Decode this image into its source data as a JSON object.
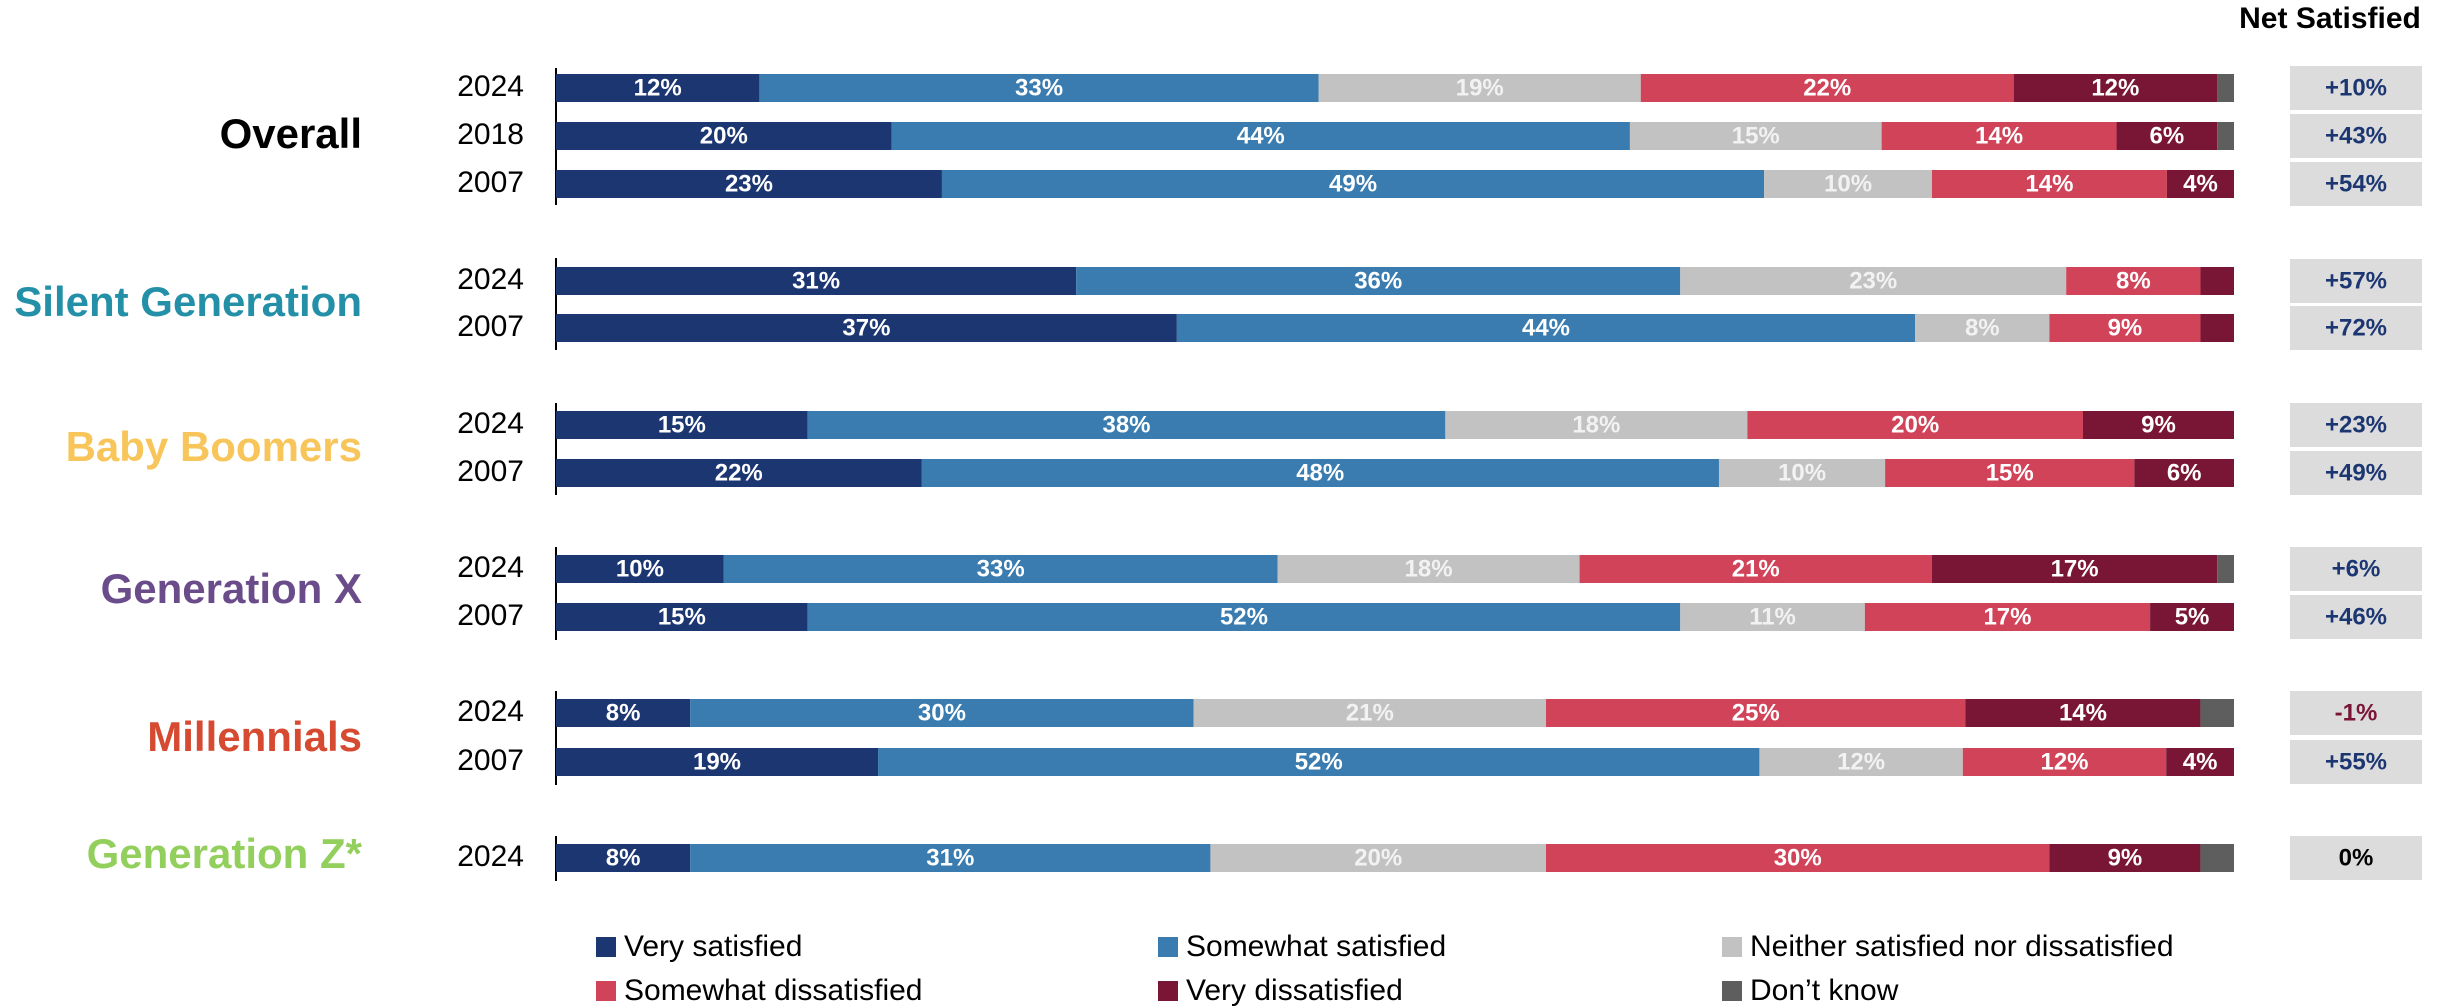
{
  "net_header": "Net Satisfied",
  "colors": {
    "very_satisfied": "#1c3672",
    "somewhat_satisfied": "#3a7caf",
    "neither": "#c2c2c2",
    "somewhat_dissatisfied": "#d14359",
    "very_dissatisfied": "#7a1635",
    "dont_know": "#5e5e5e",
    "net_box": "#dcdcdc",
    "net_positive_text": "#1c3672",
    "net_negative_text": "#7a1635",
    "net_zero_text": "#000000"
  },
  "chart_data": {
    "type": "bar",
    "orientation": "horizontal-stacked-100",
    "legend_position": "bottom",
    "categories_series": [
      "Very satisfied",
      "Somewhat satisfied",
      "Neither satisfied nor dissatisfied",
      "Somewhat dissatisfied",
      "Very dissatisfied",
      "Don’t know"
    ],
    "groups": [
      {
        "name": "Overall",
        "color": "#000000",
        "rows": [
          {
            "year": "2024",
            "values": [
              12,
              33,
              19,
              22,
              12,
              1
            ],
            "labels": [
              "12%",
              "33%",
              "19%",
              "22%",
              "12%",
              ""
            ],
            "net": "+10%"
          },
          {
            "year": "2018",
            "values": [
              20,
              44,
              15,
              14,
              6,
              1
            ],
            "labels": [
              "20%",
              "44%",
              "15%",
              "14%",
              "6%",
              ""
            ],
            "net": "+43%"
          },
          {
            "year": "2007",
            "values": [
              23,
              49,
              10,
              14,
              4,
              0
            ],
            "labels": [
              "23%",
              "49%",
              "10%",
              "14%",
              "4%",
              ""
            ],
            "net": "+54%"
          }
        ]
      },
      {
        "name": "Silent Generation",
        "color": "#2490a8",
        "rows": [
          {
            "year": "2024",
            "values": [
              31,
              36,
              23,
              8,
              2,
              0
            ],
            "labels": [
              "31%",
              "36%",
              "23%",
              "8%",
              "",
              ""
            ],
            "net": "+57%"
          },
          {
            "year": "2007",
            "values": [
              37,
              44,
              8,
              9,
              2,
              0
            ],
            "labels": [
              "37%",
              "44%",
              "8%",
              "9%",
              "",
              ""
            ],
            "net": "+72%"
          }
        ]
      },
      {
        "name": "Baby Boomers",
        "color": "#f7c55a",
        "rows": [
          {
            "year": "2024",
            "values": [
              15,
              38,
              18,
              20,
              9,
              0
            ],
            "labels": [
              "15%",
              "38%",
              "18%",
              "20%",
              "9%",
              ""
            ],
            "net": "+23%"
          },
          {
            "year": "2007",
            "values": [
              22,
              48,
              10,
              15,
              6,
              0
            ],
            "labels": [
              "22%",
              "48%",
              "10%",
              "15%",
              "6%",
              ""
            ],
            "net": "+49%"
          }
        ]
      },
      {
        "name": "Generation X",
        "color": "#6b4c8a",
        "rows": [
          {
            "year": "2024",
            "values": [
              10,
              33,
              18,
              21,
              17,
              1
            ],
            "labels": [
              "10%",
              "33%",
              "18%",
              "21%",
              "17%",
              ""
            ],
            "net": "+6%"
          },
          {
            "year": "2007",
            "values": [
              15,
              52,
              11,
              17,
              5,
              0
            ],
            "labels": [
              "15%",
              "52%",
              "11%",
              "17%",
              "5%",
              ""
            ],
            "net": "+46%"
          }
        ]
      },
      {
        "name": "Millennials",
        "color": "#d54a31",
        "rows": [
          {
            "year": "2024",
            "values": [
              8,
              30,
              21,
              25,
              14,
              2
            ],
            "labels": [
              "8%",
              "30%",
              "21%",
              "25%",
              "14%",
              ""
            ],
            "net": "-1%"
          },
          {
            "year": "2007",
            "values": [
              19,
              52,
              12,
              12,
              4,
              0
            ],
            "labels": [
              "19%",
              "52%",
              "12%",
              "12%",
              "4%",
              ""
            ],
            "net": "+55%"
          }
        ]
      },
      {
        "name": "Generation Z*",
        "color": "#93cf5c",
        "rows": [
          {
            "year": "2024",
            "values": [
              8,
              31,
              20,
              30,
              9,
              2
            ],
            "labels": [
              "8%",
              "31%",
              "20%",
              "30%",
              "9%",
              ""
            ],
            "net": "0%"
          }
        ]
      }
    ]
  }
}
